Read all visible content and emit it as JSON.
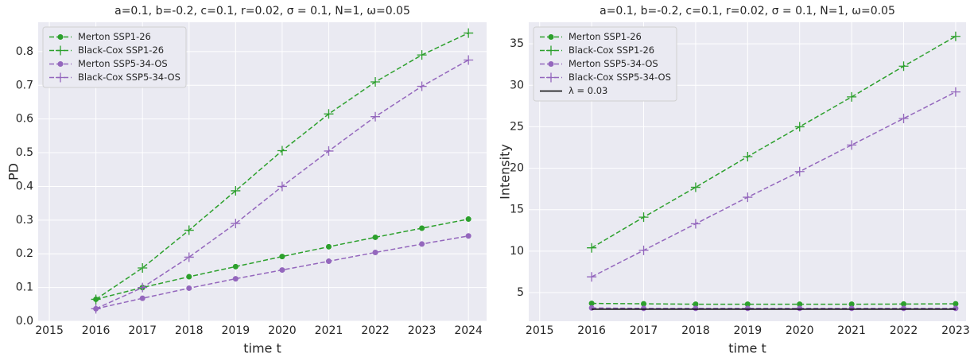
{
  "chart_data": [
    {
      "type": "line",
      "title": "a=0.1, b=-0.2, c=0.1, r=0.02, σ = 0.1, N=1, ω=0.05",
      "x_label": "time t",
      "y_label": "PD",
      "x": [
        2016,
        2017,
        2018,
        2019,
        2020,
        2021,
        2022,
        2023,
        2024
      ],
      "xlim": [
        2014.76,
        2024.39
      ],
      "xticks": [
        2015,
        2016,
        2017,
        2018,
        2019,
        2020,
        2021,
        2022,
        2023,
        2024
      ],
      "ylim": [
        0,
        0.887
      ],
      "yticks": [
        {
          "value": 0,
          "label": "0.0"
        },
        0.1,
        0.2,
        0.3,
        0.4,
        0.5,
        0.6,
        0.7,
        0.8
      ],
      "grid": true,
      "legend": "upper-left",
      "series": [
        {
          "name": "Merton SSP1-26",
          "color": "#2ca02c",
          "marker": "o",
          "linestyle": "dashed",
          "values": [
            0.065,
            0.1,
            0.132,
            0.162,
            0.192,
            0.221,
            0.249,
            0.276,
            0.303
          ]
        },
        {
          "name": "Black-Cox SSP1-26",
          "color": "#2ca02c",
          "marker": "+",
          "linestyle": "dashed",
          "values": [
            0.065,
            0.158,
            0.27,
            0.387,
            0.506,
            0.615,
            0.71,
            0.79,
            0.855
          ]
        },
        {
          "name": "Merton SSP5-34-OS",
          "color": "#9467bd",
          "marker": "o",
          "linestyle": "dashed",
          "values": [
            0.037,
            0.068,
            0.098,
            0.126,
            0.152,
            0.178,
            0.204,
            0.229,
            0.253
          ]
        },
        {
          "name": "Black-Cox SSP5-34-OS",
          "color": "#9467bd",
          "marker": "+",
          "linestyle": "dashed",
          "values": [
            0.037,
            0.1,
            0.19,
            0.29,
            0.4,
            0.505,
            0.607,
            0.697,
            0.775
          ]
        }
      ]
    },
    {
      "type": "line",
      "title": "a=0.1, b=-0.2, c=0.1, r=0.02, σ = 0.1, N=1, ω=0.05",
      "x_label": "time t",
      "y_label": "Intensity",
      "x": [
        2016,
        2017,
        2018,
        2019,
        2020,
        2021,
        2022,
        2023
      ],
      "xlim": [
        2014.79,
        2023.2
      ],
      "xticks": [
        2015,
        2016,
        2017,
        2018,
        2019,
        2020,
        2021,
        2022,
        2023
      ],
      "ylim": [
        1.55,
        37.6
      ],
      "yticks": [
        5,
        10,
        15,
        20,
        25,
        30,
        35
      ],
      "grid": true,
      "legend": "upper-left",
      "series": [
        {
          "name": "Merton SSP1-26",
          "color": "#2ca02c",
          "marker": "o",
          "linestyle": "dashed",
          "values": [
            3.7,
            3.65,
            3.6,
            3.6,
            3.6,
            3.6,
            3.62,
            3.65
          ]
        },
        {
          "name": "Black-Cox SSP1-26",
          "color": "#2ca02c",
          "marker": "+",
          "linestyle": "dashed",
          "values": [
            10.4,
            14.1,
            17.7,
            21.4,
            25.0,
            28.6,
            32.3,
            35.9
          ]
        },
        {
          "name": "Merton SSP5-34-OS",
          "color": "#9467bd",
          "marker": "o",
          "linestyle": "dashed",
          "values": [
            3.15,
            3.1,
            3.1,
            3.1,
            3.1,
            3.1,
            3.1,
            3.1
          ]
        },
        {
          "name": "Black-Cox SSP5-34-OS",
          "color": "#9467bd",
          "marker": "+",
          "linestyle": "dashed",
          "values": [
            6.9,
            10.1,
            13.3,
            16.5,
            19.6,
            22.8,
            26.0,
            29.2
          ]
        },
        {
          "name": "λ = 0.03",
          "color": "#000000",
          "marker": "none",
          "linestyle": "solid",
          "values": [
            3.0,
            3.0,
            3.0,
            3.0,
            3.0,
            3.0,
            3.0,
            3.0
          ]
        }
      ]
    }
  ]
}
